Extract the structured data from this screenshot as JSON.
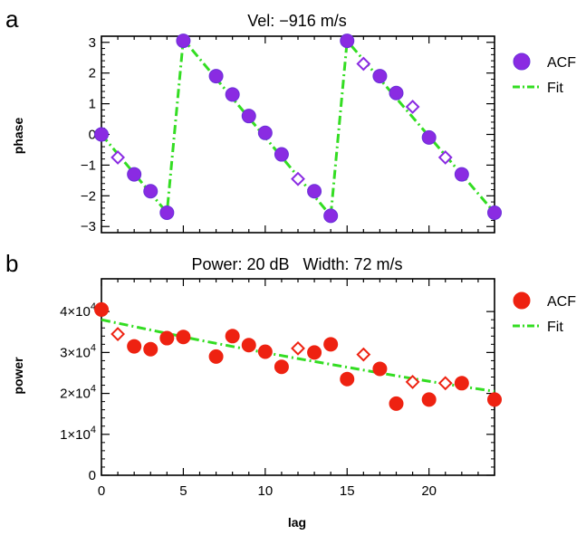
{
  "chart_data": [
    {
      "type": "line",
      "panel_label": "a",
      "title": "Vel: −916 m/s",
      "xlabel": "",
      "ylabel": "phase",
      "xlim": [
        0,
        24
      ],
      "ylim": [
        -3.2,
        3.2
      ],
      "yticks": [
        -3,
        -2,
        -1,
        0,
        1,
        2,
        3
      ],
      "yticklabels": [
        "−3",
        "−2",
        "−1",
        "0",
        "1",
        "2",
        "3"
      ],
      "xticks": [
        0,
        5,
        10,
        15,
        20
      ],
      "grid": false,
      "legend_position": "right",
      "marker_color": "#8a2be2",
      "marker_edge": "#6a30d9",
      "fit_color": "#33dd22",
      "legend": [
        {
          "label": "ACF",
          "kind": "circle"
        },
        {
          "label": "Fit",
          "kind": "dashdot"
        }
      ],
      "acf_circles": [
        {
          "x": 0,
          "y": 0.0
        },
        {
          "x": 2,
          "y": -1.3
        },
        {
          "x": 3,
          "y": -1.85
        },
        {
          "x": 4,
          "y": -2.55
        },
        {
          "x": 5,
          "y": 3.05
        },
        {
          "x": 7,
          "y": 1.9
        },
        {
          "x": 8,
          "y": 1.3
        },
        {
          "x": 9,
          "y": 0.6
        },
        {
          "x": 10,
          "y": 0.05
        },
        {
          "x": 11,
          "y": -0.65
        },
        {
          "x": 13,
          "y": -1.85
        },
        {
          "x": 14,
          "y": -2.65
        },
        {
          "x": 15,
          "y": 3.05
        },
        {
          "x": 17,
          "y": 1.9
        },
        {
          "x": 18,
          "y": 1.35
        },
        {
          "x": 20,
          "y": -0.1
        },
        {
          "x": 22,
          "y": -1.3
        },
        {
          "x": 24,
          "y": -2.55
        }
      ],
      "acf_diamonds": [
        {
          "x": 1,
          "y": -0.75
        },
        {
          "x": 12,
          "y": -1.45
        },
        {
          "x": 16,
          "y": 2.3
        },
        {
          "x": 19,
          "y": 0.9
        },
        {
          "x": 21,
          "y": -0.75
        }
      ],
      "fit": [
        {
          "x": 0,
          "y": 0.0
        },
        {
          "x": 4,
          "y": -2.55
        },
        {
          "x": 5,
          "y": 3.1
        },
        {
          "x": 14,
          "y": -2.65
        },
        {
          "x": 15,
          "y": 3.05
        },
        {
          "x": 24,
          "y": -2.55
        }
      ]
    },
    {
      "type": "scatter",
      "panel_label": "b",
      "title": "Power: 20 dB   Width: 72 m/s",
      "xlabel": "lag",
      "ylabel": "power",
      "xlim": [
        0,
        24
      ],
      "ylim": [
        0,
        48000
      ],
      "yticks": [
        0,
        10000,
        20000,
        30000,
        40000
      ],
      "yticklabels": [
        {
          "mant": "0",
          "exp": ""
        },
        {
          "mant": "1×10",
          "exp": "4"
        },
        {
          "mant": "2×10",
          "exp": "4"
        },
        {
          "mant": "3×10",
          "exp": "4"
        },
        {
          "mant": "4×10",
          "exp": "4"
        }
      ],
      "xticks": [
        0,
        5,
        10,
        15,
        20
      ],
      "xticklabels": [
        "0",
        "5",
        "10",
        "15",
        "20"
      ],
      "grid": false,
      "legend_position": "right",
      "marker_color": "#ee2211",
      "fit_color": "#33dd22",
      "legend": [
        {
          "label": "ACF",
          "kind": "circle"
        },
        {
          "label": "Fit",
          "kind": "dashdot"
        }
      ],
      "acf_circles": [
        {
          "x": 0,
          "y": 40500
        },
        {
          "x": 2,
          "y": 31500
        },
        {
          "x": 3,
          "y": 30800
        },
        {
          "x": 4,
          "y": 33500
        },
        {
          "x": 5,
          "y": 33800
        },
        {
          "x": 7,
          "y": 29000
        },
        {
          "x": 8,
          "y": 34000
        },
        {
          "x": 9,
          "y": 31800
        },
        {
          "x": 10,
          "y": 30200
        },
        {
          "x": 11,
          "y": 26500
        },
        {
          "x": 13,
          "y": 30000
        },
        {
          "x": 14,
          "y": 32000
        },
        {
          "x": 15,
          "y": 23500
        },
        {
          "x": 17,
          "y": 26000
        },
        {
          "x": 18,
          "y": 17500
        },
        {
          "x": 20,
          "y": 18500
        },
        {
          "x": 22,
          "y": 22500
        },
        {
          "x": 24,
          "y": 18500
        }
      ],
      "acf_diamonds": [
        {
          "x": 1,
          "y": 34500
        },
        {
          "x": 12,
          "y": 31000
        },
        {
          "x": 16,
          "y": 29500
        },
        {
          "x": 19,
          "y": 22800
        },
        {
          "x": 21,
          "y": 22500
        }
      ],
      "fit": [
        {
          "x": 0,
          "y": 38000
        },
        {
          "x": 3,
          "y": 35500
        },
        {
          "x": 6,
          "y": 33000
        },
        {
          "x": 9,
          "y": 30700
        },
        {
          "x": 12,
          "y": 28500
        },
        {
          "x": 15,
          "y": 26400
        },
        {
          "x": 18,
          "y": 24300
        },
        {
          "x": 21,
          "y": 22300
        },
        {
          "x": 24,
          "y": 20500
        }
      ]
    }
  ]
}
